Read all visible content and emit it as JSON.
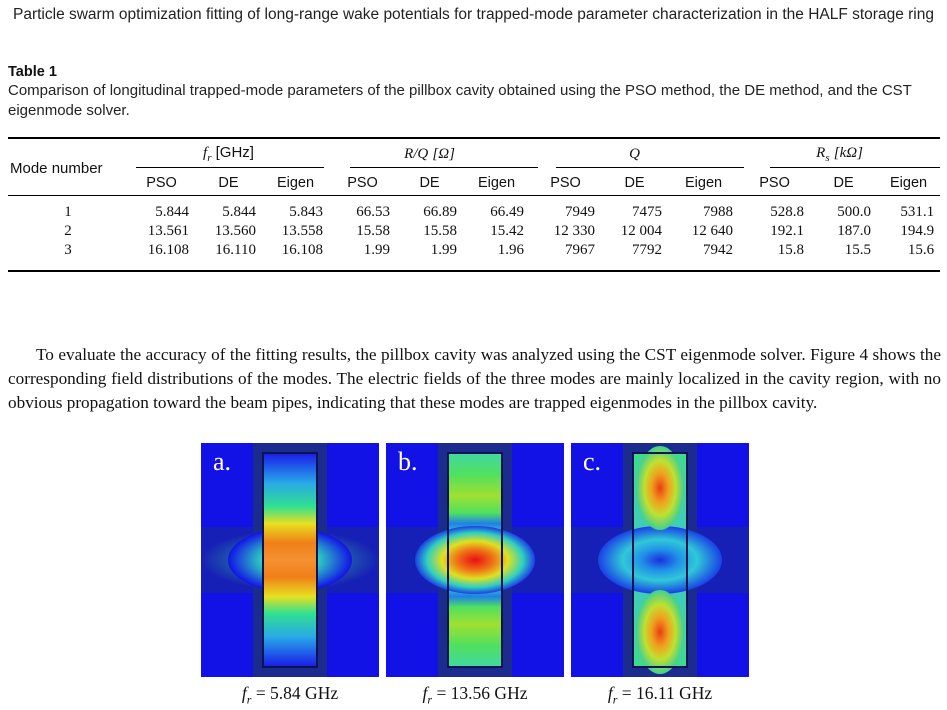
{
  "header": {
    "running_title": "Particle swarm optimization fitting of long-range wake potentials for trapped-mode parameter characterization in the HALF storage ring"
  },
  "table": {
    "label": "Table 1",
    "caption": "Comparison of longitudinal trapped-mode parameters of the pillbox cavity obtained using the PSO method, the DE method, and the CST eigenmode solver.",
    "mode_header": "Mode number",
    "groups": [
      {
        "symbol": "f",
        "sub": "r",
        "unit": "[GHz]"
      },
      {
        "symbol": "R/Q",
        "sub": "",
        "unit": "[Ω]"
      },
      {
        "symbol": "Q",
        "sub": "",
        "unit": ""
      },
      {
        "symbol": "R",
        "sub": "s",
        "unit": "[kΩ]"
      }
    ],
    "subheaders": [
      "PSO",
      "DE",
      "Eigen"
    ],
    "rows": [
      {
        "mode": "1",
        "values": [
          "5.844",
          "5.844",
          "5.843",
          "66.53",
          "66.89",
          "66.49",
          "7949",
          "7475",
          "7988",
          "528.8",
          "500.0",
          "531.1"
        ]
      },
      {
        "mode": "2",
        "values": [
          "13.561",
          "13.560",
          "13.558",
          "15.58",
          "15.58",
          "15.42",
          "12 330",
          "12 004",
          "12 640",
          "192.1",
          "187.0",
          "194.9"
        ]
      },
      {
        "mode": "3",
        "values": [
          "16.108",
          "16.110",
          "16.108",
          "1.99",
          "1.99",
          "1.96",
          "7967",
          "7792",
          "7942",
          "15.8",
          "15.5",
          "15.6"
        ]
      }
    ]
  },
  "paragraph": "To evaluate the accuracy of the fitting results, the pillbox cavity was analyzed using the CST eigenmode solver. Figure 4 shows the corresponding field distributions of the modes. The electric fields of the three modes are mainly localized in the cavity region, with no obvious propagation toward the beam pipes, indicating that these modes are trapped eigenmodes in the pillbox cavity.",
  "figure": {
    "panels": [
      {
        "letter": "a.",
        "caption_symbol": "f",
        "caption_sub": "r",
        "caption_value": " = 5.84 GHz"
      },
      {
        "letter": "b.",
        "caption_symbol": "f",
        "caption_sub": "r",
        "caption_value": " = 13.56 GHz"
      },
      {
        "letter": "c.",
        "caption_symbol": "f",
        "caption_sub": "r",
        "caption_value": " = 16.11 GHz"
      }
    ],
    "colors": {
      "background": "#1212e6",
      "metal": "#1c2c8e",
      "metal_edge": "#0a1450"
    }
  }
}
